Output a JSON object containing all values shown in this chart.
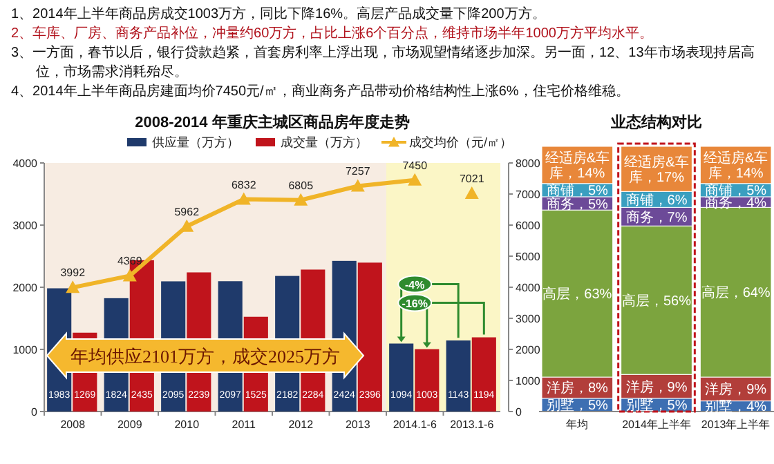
{
  "chart_data": [
    {
      "type": "bar",
      "title": "2008-2014 年重庆主城区商品房年度走势",
      "categories": [
        "2008",
        "2009",
        "2010",
        "2011",
        "2012",
        "2013",
        "2014.1-6",
        "2013.1-6"
      ],
      "series": [
        {
          "name": "供应量（万方）",
          "color": "#1f3a6b",
          "values": [
            1983,
            1824,
            2095,
            2097,
            2182,
            2424,
            1094,
            1143
          ]
        },
        {
          "name": "成交量（万方）",
          "color": "#c0141c",
          "values": [
            1269,
            2435,
            2239,
            1525,
            2284,
            2396,
            1003,
            1194
          ]
        },
        {
          "name": "成交均价（元/㎡）",
          "type": "line",
          "axis": "y2",
          "marker": "triangle",
          "color": "#f0b428",
          "values": [
            3992,
            4369,
            5962,
            6832,
            6805,
            7257,
            7450,
            null
          ]
        },
        {
          "type": "scatter",
          "axis": "y2",
          "marker": "triangle",
          "color": "#f0b428",
          "values": [
            null,
            null,
            null,
            null,
            null,
            null,
            null,
            7021
          ]
        }
      ],
      "ylim": [
        0,
        4000
      ],
      "yticks": [
        0,
        1000,
        2000,
        3000,
        4000
      ],
      "y2lim": [
        0,
        8000
      ],
      "y2ticks": [
        0,
        1000,
        2000,
        3000,
        4000,
        5000,
        6000,
        7000,
        8000
      ],
      "data_labels": true,
      "legend": "top",
      "grid": false,
      "bands": [
        {
          "axis": "x",
          "from": "2008",
          "to": "2013",
          "color": "#f7ece2"
        },
        {
          "axis": "x",
          "from": "2014.1-6",
          "to": "2013.1-6",
          "color": "#fbf6c6"
        }
      ],
      "annotations": [
        "1、2014年上半年商品房成交1003万方，同比下降16%。高层产品成交量下降200万方。",
        "2、车库、厂房、商务产品补位，冲量约60万方，占比上涨6个百分点，维持市场半年1000万方平均水平。",
        "3、一方面，春节以后，银行贷款趋紧，首套房利率上浮出现，市场观望情绪逐步加深。另一面，12、13年市场表现持居高位，市场需求消耗殆尽。",
        "4、2014年上半年商品房建面均价7450元/㎡，商业商务产品带动价格结构性上涨6%，住宅价格维稳。",
        "年均供应2101万方，成交2025万方",
        {
          "text": "-4%",
          "x": "2014.1-6",
          "y": 2050
        },
        {
          "text": "-16%",
          "x": "2014.1-6",
          "y": 1750
        }
      ]
    },
    {
      "type": "bar",
      "title": "业态结构对比",
      "stacked": true,
      "categories": [
        "年均",
        "2014年上半年",
        "2013年上半年"
      ],
      "series": [
        {
          "color": "#3d6fb2",
          "values": [
            5,
            5,
            4
          ],
          "value_labels": [
            "别墅，5%",
            "别墅，5%",
            "别墅，4%"
          ]
        },
        {
          "color": "#b23e3a",
          "values": [
            8,
            9,
            9
          ],
          "value_labels": [
            "洋房，8%",
            "洋房，9%",
            "洋房，9%"
          ]
        },
        {
          "color": "#7ca43e",
          "values": [
            63,
            56,
            64
          ],
          "value_labels": [
            "高层，63%",
            "高层，56%",
            "高层，64%"
          ]
        },
        {
          "color": "#6c4a98",
          "values": [
            5,
            7,
            4
          ],
          "value_labels": [
            "商务，5%",
            "商务，7%",
            "商务，4%"
          ]
        },
        {
          "color": "#3a9fc0",
          "values": [
            5,
            6,
            5
          ],
          "value_labels": [
            "商铺，5%",
            "商铺，6%",
            "商铺，5%"
          ]
        },
        {
          "color": "#e8873a",
          "values": [
            14,
            17,
            14
          ],
          "value_labels": [
            "经适房&车库，14%",
            "经适房&车库，17%",
            "经适房&车库，14%"
          ]
        }
      ]
    }
  ]
}
